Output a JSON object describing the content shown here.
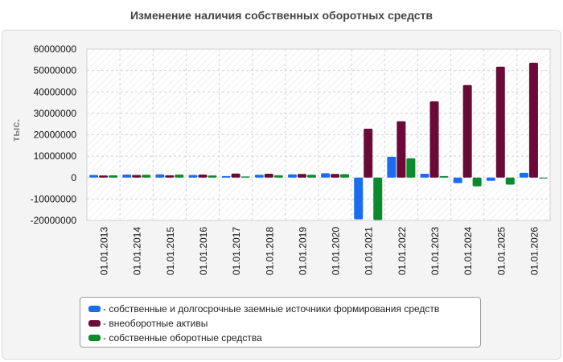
{
  "chart_data": {
    "type": "bar",
    "title": "Изменение наличия собственных оборотных средств",
    "ylabel": "тыс.",
    "xlabel": "",
    "ylim": [
      -20000000,
      60000000
    ],
    "yticks": [
      -20000000,
      -10000000,
      0,
      10000000,
      20000000,
      30000000,
      40000000,
      50000000,
      60000000
    ],
    "grid": true,
    "legend_position": "bottom",
    "categories": [
      "01.01.2013",
      "01.01.2014",
      "01.01.2015",
      "01.01.2016",
      "01.01.2017",
      "01.01.2018",
      "01.01.2019",
      "01.01.2020",
      "01.01.2021",
      "01.01.2022",
      "01.01.2023",
      "01.01.2024",
      "01.01.2025",
      "01.01.2026"
    ],
    "series": [
      {
        "name": "собственные и долгосрочные заемные источники формирования средств",
        "color": "#1a6cf0",
        "values": [
          1200000,
          1400000,
          1500000,
          1200000,
          700000,
          1300000,
          1500000,
          2000000,
          -19500000,
          9700000,
          1800000,
          -2600000,
          -1500000,
          2200000
        ]
      },
      {
        "name": "внеоборотные активы",
        "color": "#6b0a37",
        "values": [
          1000000,
          1200000,
          1100000,
          1400000,
          1900000,
          1800000,
          1700000,
          1700000,
          22800000,
          26300000,
          35600000,
          43200000,
          51800000,
          53600000
        ]
      },
      {
        "name": "собственные оборотные средства",
        "color": "#0b8a2e",
        "values": [
          1100000,
          1300000,
          1400000,
          1000000,
          500000,
          1100000,
          1300000,
          1600000,
          -19800000,
          9000000,
          700000,
          -4100000,
          -3300000,
          -400000
        ]
      }
    ]
  }
}
